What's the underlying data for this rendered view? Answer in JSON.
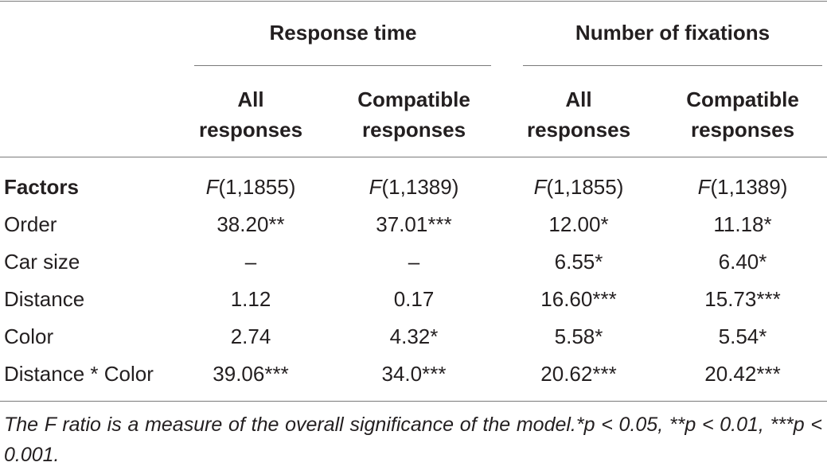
{
  "header": {
    "groups": [
      "Response time",
      "Number of fixations"
    ],
    "columns": [
      {
        "line1": "All",
        "line2": "responses"
      },
      {
        "line1": "Compatible",
        "line2": "responses"
      },
      {
        "line1": "All",
        "line2": "responses"
      },
      {
        "line1": "Compatible",
        "line2": "responses"
      }
    ]
  },
  "factors_row": {
    "label": "Factors",
    "df": [
      {
        "f": "F",
        "rest": "(1,1855)"
      },
      {
        "f": "F",
        "rest": "(1,1389)"
      },
      {
        "f": "F",
        "rest": "(1,1855)"
      },
      {
        "f": "F",
        "rest": "(1,1389)"
      }
    ]
  },
  "rows": [
    {
      "label": "Order",
      "values": [
        "38.20**",
        "37.01***",
        "12.00*",
        "11.18*"
      ]
    },
    {
      "label": "Car size",
      "values": [
        "–",
        "–",
        "6.55*",
        "6.40*"
      ]
    },
    {
      "label": "Distance",
      "values": [
        "1.12",
        "0.17",
        "16.60***",
        "15.73***"
      ]
    },
    {
      "label": "Color",
      "values": [
        "2.74",
        "4.32*",
        "5.58*",
        "5.54*"
      ]
    },
    {
      "label": "Distance * Color",
      "values": [
        "39.06***",
        "34.0***",
        "20.62***",
        "20.42***"
      ]
    }
  ],
  "note": "The F ratio is a measure of the overall significance of the model.*p < 0.05, **p < 0.01, ***p < 0.001."
}
